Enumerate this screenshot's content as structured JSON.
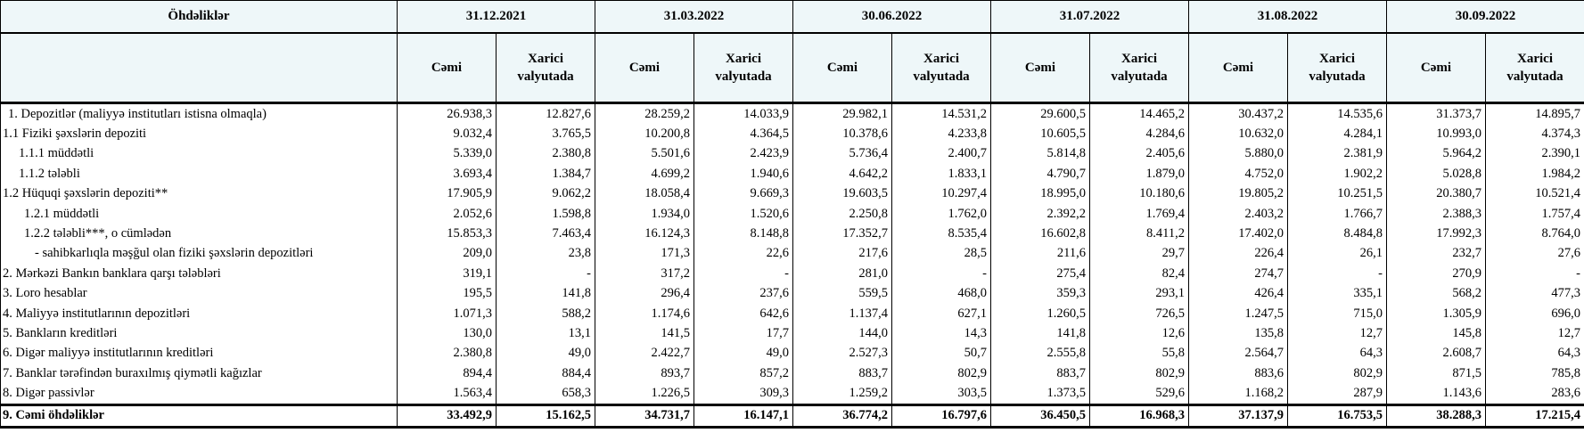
{
  "header": {
    "title": "Öhdəliklər",
    "dates": [
      "31.12.2021",
      "31.03.2022",
      "30.06.2022",
      "31.07.2022",
      "31.08.2022",
      "30.09.2022"
    ],
    "sub_total": "Cəmi",
    "sub_foreign_line1": "Xarici",
    "sub_foreign_line2": "valyutada"
  },
  "rows": [
    {
      "label": "1. Depozitlər (maliyyə institutları istisna olmaqla)",
      "indent": 1,
      "values": [
        "26.938,3",
        "12.827,6",
        "28.259,2",
        "14.033,9",
        "29.982,1",
        "14.531,2",
        "29.600,5",
        "14.465,2",
        "30.437,2",
        "14.535,6",
        "31.373,7",
        "14.895,7"
      ]
    },
    {
      "label": "1.1 Fiziki şəxslərin depoziti",
      "indent": 0,
      "values": [
        "9.032,4",
        "3.765,5",
        "10.200,8",
        "4.364,5",
        "10.378,6",
        "4.233,8",
        "10.605,5",
        "4.284,6",
        "10.632,0",
        "4.284,1",
        "10.993,0",
        "4.374,3"
      ]
    },
    {
      "label": "1.1.1 müddətli",
      "indent": 3,
      "values": [
        "5.339,0",
        "2.380,8",
        "5.501,6",
        "2.423,9",
        "5.736,4",
        "2.400,7",
        "5.814,8",
        "2.405,6",
        "5.880,0",
        "2.381,9",
        "5.964,2",
        "2.390,1"
      ]
    },
    {
      "label": "1.1.2 tələbli",
      "indent": 3,
      "values": [
        "3.693,4",
        "1.384,7",
        "4.699,2",
        "1.940,6",
        "4.642,2",
        "1.833,1",
        "4.790,7",
        "1.879,0",
        "4.752,0",
        "1.902,2",
        "5.028,8",
        "1.984,2"
      ]
    },
    {
      "label": "1.2 Hüquqi şəxslərin depoziti**",
      "indent": 0,
      "values": [
        "17.905,9",
        "9.062,2",
        "18.058,4",
        "9.669,3",
        "19.603,5",
        "10.297,4",
        "18.995,0",
        "10.180,6",
        "19.805,2",
        "10.251,5",
        "20.380,7",
        "10.521,4"
      ]
    },
    {
      "label": "1.2.1 müddətli",
      "indent": 4,
      "values": [
        "2.052,6",
        "1.598,8",
        "1.934,0",
        "1.520,6",
        "2.250,8",
        "1.762,0",
        "2.392,2",
        "1.769,4",
        "2.403,2",
        "1.766,7",
        "2.388,3",
        "1.757,4"
      ]
    },
    {
      "label": "1.2.2 tələbli***, o cümlədən",
      "indent": 4,
      "values": [
        "15.853,3",
        "7.463,4",
        "16.124,3",
        "8.148,8",
        "17.352,7",
        "8.535,4",
        "16.602,8",
        "8.411,2",
        "17.402,0",
        "8.484,8",
        "17.992,3",
        "8.764,0"
      ]
    },
    {
      "label": "- sahibkarlıqla məşğul olan fiziki şəxslərin depozitləri",
      "indent": 6,
      "values": [
        "209,0",
        "23,8",
        "171,3",
        "22,6",
        "217,6",
        "28,5",
        "211,6",
        "29,7",
        "226,4",
        "26,1",
        "232,7",
        "27,6"
      ]
    },
    {
      "label": "2. Mərkəzi Bankın banklara qarşı tələbləri",
      "indent": 0,
      "values": [
        "319,1",
        "-",
        "317,2",
        "-",
        "281,0",
        "-",
        "275,4",
        "82,4",
        "274,7",
        "-",
        "270,9",
        "-"
      ]
    },
    {
      "label": "3. Loro hesablar",
      "indent": 0,
      "values": [
        "195,5",
        "141,8",
        "296,4",
        "237,6",
        "559,5",
        "468,0",
        "359,3",
        "293,1",
        "426,4",
        "335,1",
        "568,2",
        "477,3"
      ]
    },
    {
      "label": "4. Maliyyə institutlarının  depozitləri",
      "indent": 0,
      "values": [
        "1.071,3",
        "588,2",
        "1.174,6",
        "642,6",
        "1.137,4",
        "627,1",
        "1.260,5",
        "726,5",
        "1.247,5",
        "715,0",
        "1.305,9",
        "696,0"
      ]
    },
    {
      "label": "5. Bankların kreditləri",
      "indent": 0,
      "values": [
        "130,0",
        "13,1",
        "141,5",
        "17,7",
        "144,0",
        "14,3",
        "141,8",
        "12,6",
        "135,8",
        "12,7",
        "145,8",
        "12,7"
      ]
    },
    {
      "label": "6. Digər maliyyə institutlarının kreditləri",
      "indent": 0,
      "values": [
        "2.380,8",
        "49,0",
        "2.422,7",
        "49,0",
        "2.527,3",
        "50,7",
        "2.555,8",
        "55,8",
        "2.564,7",
        "64,3",
        "2.608,7",
        "64,3"
      ]
    },
    {
      "label": "7. Banklar tərəfindən buraxılmış qiymətli kağızlar",
      "indent": 0,
      "values": [
        "894,4",
        "884,4",
        "893,7",
        "857,2",
        "883,7",
        "802,9",
        "883,7",
        "802,9",
        "883,6",
        "802,9",
        "871,5",
        "785,8"
      ]
    },
    {
      "label": "8. Digər passivlər",
      "indent": 0,
      "values": [
        "1.563,4",
        "658,3",
        "1.226,5",
        "309,3",
        "1.259,2",
        "303,5",
        "1.373,5",
        "529,6",
        "1.168,2",
        "287,9",
        "1.143,6",
        "283,6"
      ]
    }
  ],
  "total": {
    "label": "9. Cəmi öhdəliklər",
    "values": [
      "33.492,9",
      "15.162,5",
      "34.731,7",
      "16.147,1",
      "36.774,2",
      "16.797,6",
      "36.450,5",
      "16.968,3",
      "37.137,9",
      "16.753,5",
      "38.288,3",
      "17.215,4"
    ]
  }
}
